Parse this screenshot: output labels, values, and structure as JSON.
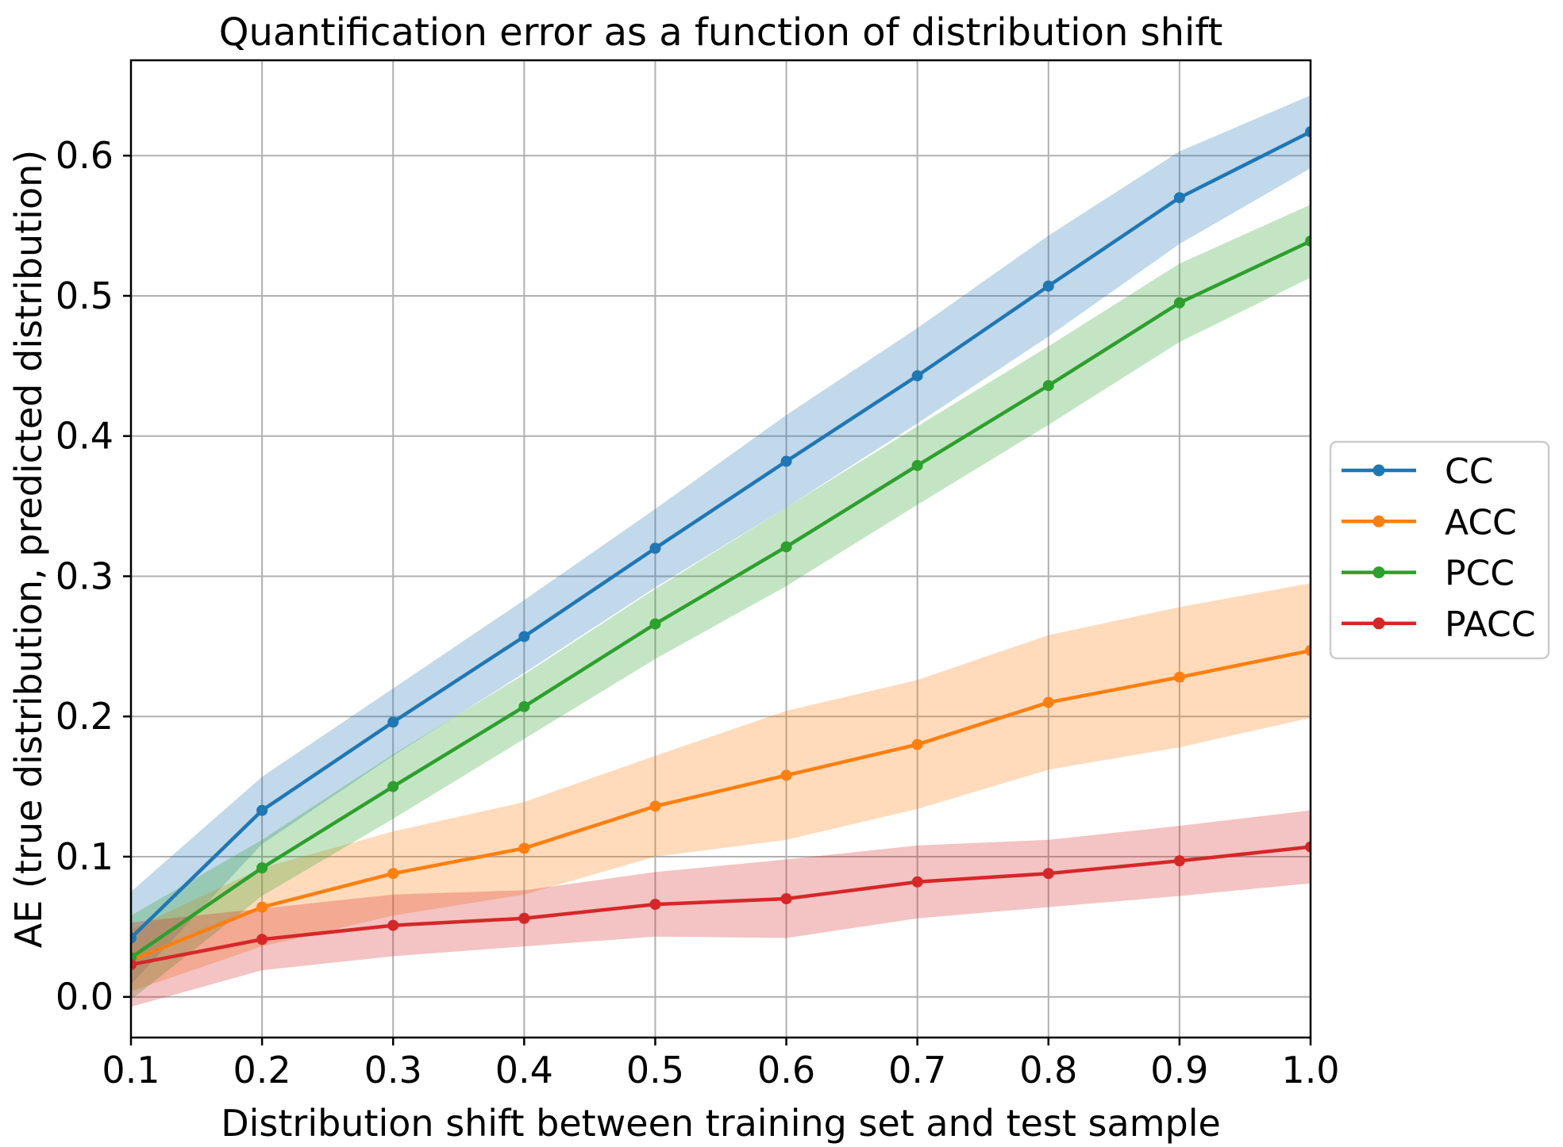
{
  "figure": {
    "background": "#ffffff"
  },
  "chart_data": {
    "type": "line",
    "title": "Quantification error as a function of distribution shift",
    "xlabel": "Distribution shift between training set and test sample",
    "ylabel": "AE (true distribution, predicted distribution)",
    "grid": true,
    "grid_color": "#b0b0b0",
    "spine_color": "#000000",
    "band_opacity": 0.28,
    "legend_position": "right-outside",
    "xlim": [
      0.1,
      1.0
    ],
    "ylim": [
      -0.029,
      0.668
    ],
    "x": [
      0.1,
      0.2,
      0.3,
      0.4,
      0.5,
      0.6,
      0.7,
      0.8,
      0.9,
      1.0
    ],
    "xticks": [
      "0.1",
      "0.2",
      "0.3",
      "0.4",
      "0.5",
      "0.6",
      "0.7",
      "0.8",
      "0.9",
      "1.0"
    ],
    "yticks": [
      "0.0",
      "0.1",
      "0.2",
      "0.3",
      "0.4",
      "0.5",
      "0.6"
    ],
    "series": [
      {
        "name": "CC",
        "color": "#1f77b4",
        "values": [
          0.042,
          0.133,
          0.196,
          0.257,
          0.32,
          0.382,
          0.443,
          0.507,
          0.57,
          0.617
        ],
        "band": [
          0.033,
          0.024,
          0.024,
          0.026,
          0.028,
          0.033,
          0.034,
          0.036,
          0.033,
          0.026
        ]
      },
      {
        "name": "ACC",
        "color": "#ff7f0e",
        "values": [
          0.026,
          0.064,
          0.088,
          0.106,
          0.136,
          0.158,
          0.18,
          0.21,
          0.228,
          0.247
        ],
        "band": [
          0.022,
          0.028,
          0.03,
          0.033,
          0.036,
          0.046,
          0.046,
          0.048,
          0.05,
          0.048
        ]
      },
      {
        "name": "PCC",
        "color": "#2ca02c",
        "values": [
          0.028,
          0.092,
          0.15,
          0.207,
          0.266,
          0.321,
          0.379,
          0.436,
          0.495,
          0.539
        ],
        "band": [
          0.03,
          0.02,
          0.023,
          0.023,
          0.025,
          0.028,
          0.028,
          0.028,
          0.028,
          0.026
        ]
      },
      {
        "name": "PACC",
        "color": "#d62728",
        "values": [
          0.023,
          0.041,
          0.051,
          0.056,
          0.066,
          0.07,
          0.082,
          0.088,
          0.097,
          0.107
        ],
        "band": [
          0.03,
          0.022,
          0.022,
          0.02,
          0.023,
          0.028,
          0.026,
          0.024,
          0.025,
          0.026
        ]
      }
    ]
  }
}
